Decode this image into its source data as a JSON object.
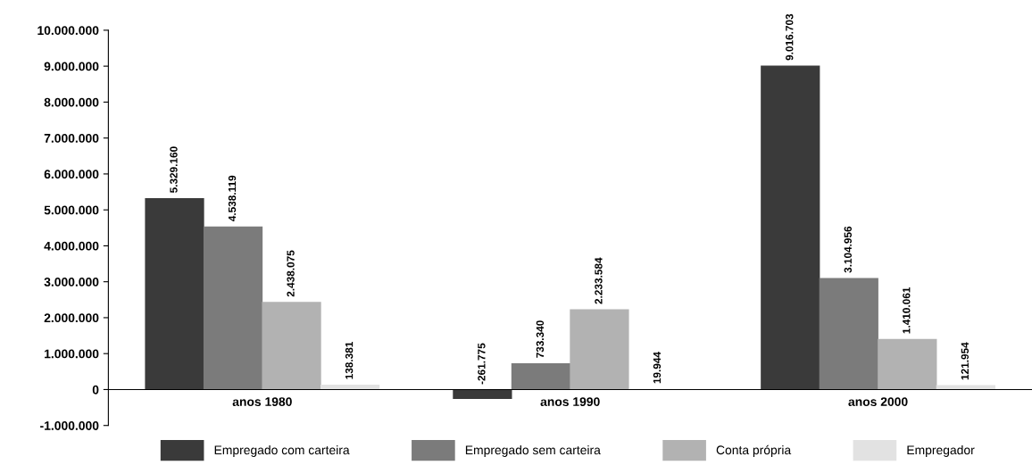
{
  "chart_data": {
    "type": "bar",
    "categories": [
      "anos 1980",
      "anos 1990",
      "anos 2000"
    ],
    "series": [
      {
        "name": "Empregado com carteira",
        "color": "#3a3a3a",
        "values": [
          5329160,
          -261775,
          9016703
        ],
        "value_labels": [
          "5.329.160",
          "-261.775",
          "9.016.703"
        ]
      },
      {
        "name": "Empregado sem carteira",
        "color": "#7b7b7b",
        "values": [
          4538119,
          733340,
          3104956
        ],
        "value_labels": [
          "4.538.119",
          "733.340",
          "3.104.956"
        ]
      },
      {
        "name": "Conta própria",
        "color": "#b2b2b2",
        "values": [
          2438075,
          2233584,
          1410061
        ],
        "value_labels": [
          "2.438.075",
          "2.233.584",
          "1.410.061"
        ]
      },
      {
        "name": "Empregador",
        "color": "#e2e2e2",
        "values": [
          138381,
          19944,
          121954
        ],
        "value_labels": [
          "138.381",
          "19.944",
          "121.954"
        ]
      }
    ],
    "ylim": [
      -1000000,
      10000000
    ],
    "yticks": [
      {
        "value": -1000000,
        "label": "-1.000.000"
      },
      {
        "value": 0,
        "label": "0"
      },
      {
        "value": 1000000,
        "label": "1.000.000"
      },
      {
        "value": 2000000,
        "label": "2.000.000"
      },
      {
        "value": 3000000,
        "label": "3.000.000"
      },
      {
        "value": 4000000,
        "label": "4.000.000"
      },
      {
        "value": 5000000,
        "label": "5.000.000"
      },
      {
        "value": 6000000,
        "label": "6.000.000"
      },
      {
        "value": 7000000,
        "label": "7.000.000"
      },
      {
        "value": 8000000,
        "label": "8.000.000"
      },
      {
        "value": 9000000,
        "label": "9.000.000"
      },
      {
        "value": 10000000,
        "label": "10.000.000"
      }
    ],
    "grid": false,
    "legend": "bottom"
  }
}
